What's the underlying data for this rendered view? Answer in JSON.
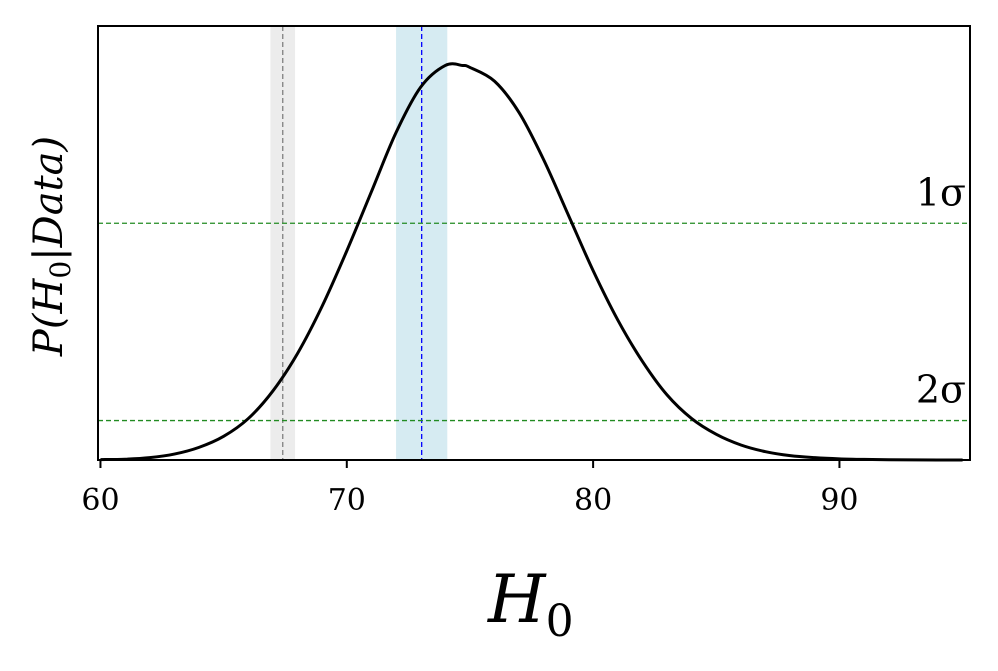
{
  "chart_data": {
    "type": "line",
    "xlabel": "H",
    "xlabel_sub": "0",
    "ylabel": "P(H0|Data)",
    "ylabel_parts": {
      "p": "P(",
      "h": "H",
      "sub": "0",
      "rest": "|Data)"
    },
    "xlim": [
      59.9,
      95.3
    ],
    "ylim": [
      0,
      1.1
    ],
    "xticks": [
      60,
      70,
      80,
      90
    ],
    "xtick_labels": [
      "60",
      "70",
      "80",
      "90"
    ],
    "yticks": [],
    "grid": false,
    "series": [
      {
        "color": "#000000",
        "x": [
          60,
          61,
          62,
          63,
          64,
          65,
          66,
          67,
          68,
          69,
          70,
          71,
          72,
          73,
          74,
          74.7,
          75,
          76,
          77,
          78,
          79,
          80,
          81,
          82,
          83,
          84,
          85,
          86,
          87,
          88,
          89,
          90,
          91,
          92,
          93,
          94,
          95
        ],
        "y": [
          0.001,
          0.002,
          0.006,
          0.015,
          0.032,
          0.06,
          0.105,
          0.175,
          0.27,
          0.39,
          0.53,
          0.68,
          0.83,
          0.945,
          1.0,
          1.0,
          0.995,
          0.96,
          0.88,
          0.76,
          0.62,
          0.48,
          0.355,
          0.25,
          0.165,
          0.105,
          0.065,
          0.038,
          0.021,
          0.011,
          0.006,
          0.003,
          0.0015,
          0.0007,
          0.0003,
          0.0001,
          0.0
        ]
      }
    ],
    "hlines": [
      {
        "label": "1σ",
        "y": 0.6,
        "color": "#228B22"
      },
      {
        "label": "2σ",
        "y": 0.1,
        "color": "#228B22"
      }
    ],
    "vbands": [
      {
        "center": 67.4,
        "lo": 66.9,
        "hi": 67.9,
        "band_color": "#d9d9d9",
        "line_color": "#808080"
      },
      {
        "center": 73.04,
        "lo": 72.0,
        "hi": 74.08,
        "band_color": "#add8e6",
        "line_color": "#0000ff"
      }
    ]
  }
}
